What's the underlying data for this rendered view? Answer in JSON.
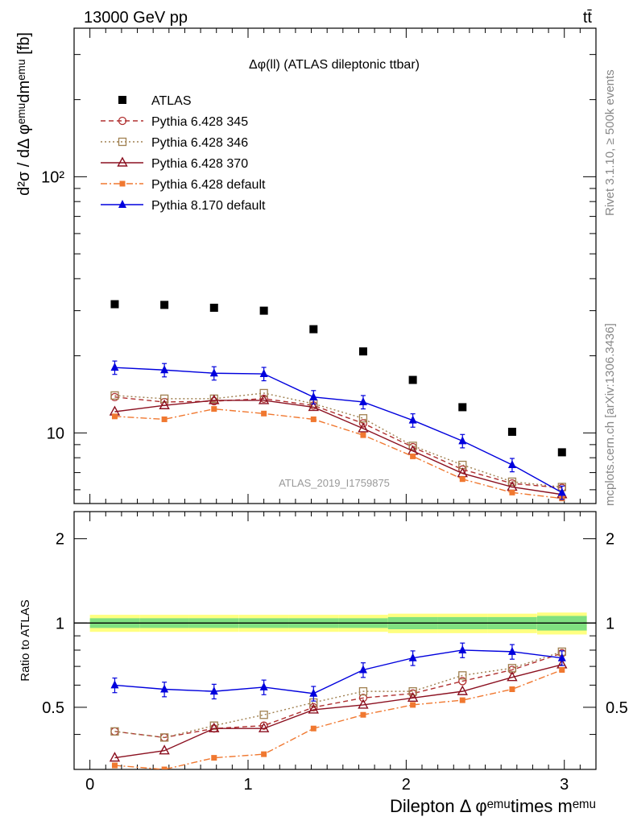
{
  "header": {
    "left": "13000 GeV pp",
    "right": "tt̄"
  },
  "main_title": "Δφ(ll) (ATLAS dileptonic ttbar)",
  "watermark": "ATLAS_2019_I1759875",
  "side_text": {
    "rivet": "Rivet 3.1.10, ≥ 500k events",
    "mcplots": "mcplots.cern.ch [arXiv:1306.3436]"
  },
  "axes": {
    "top_ylabel": "d²σ / dΔ φᵉᵐᵘdmᵉᵐᵘ [fb]",
    "bottom_ylabel": "Ratio to ATLAS",
    "xlabel": "Dilepton Δ φᵉᵐᵘtimes mᵉᵐᵘ",
    "x_ticks": [
      "0",
      "1",
      "2",
      "3"
    ],
    "top_y_ticks": [
      "10",
      "10²"
    ],
    "ratio_y_ticks": [
      "0.5",
      "1",
      "2"
    ]
  },
  "colors": {
    "atlas": "#000000",
    "p345": "#b03030",
    "p346": "#a08050",
    "p370": "#8b1020",
    "p6def": "#f07830",
    "p8def": "#0000dd",
    "band_outer": "#ffff80",
    "band_inner": "#80e080"
  },
  "chart_data": {
    "type": "scatter",
    "x": [
      0.157,
      0.471,
      0.785,
      1.1,
      1.414,
      1.728,
      2.042,
      2.356,
      2.67,
      2.985
    ],
    "xlim": [
      -0.1,
      3.2
    ],
    "ylim": [
      5.3,
      380
    ],
    "yscale": "log",
    "ratio_ylim": [
      0.3,
      2.5
    ],
    "ratio_yscale": "log",
    "legend_position": "top-left",
    "series": [
      {
        "key": "atlas",
        "name": "ATLAS",
        "style": "square-filled",
        "values": [
          31.8,
          31.6,
          30.8,
          30.0,
          25.4,
          20.8,
          16.1,
          12.6,
          10.1,
          8.4
        ]
      },
      {
        "key": "p345",
        "name": "Pythia 6.428 345",
        "style": "circle-open",
        "line": "dashed",
        "values": [
          13.8,
          13.2,
          13.3,
          13.6,
          12.8,
          10.9,
          8.8,
          7.2,
          6.35,
          6.1
        ]
      },
      {
        "key": "p346",
        "name": "Pythia 6.428 346",
        "style": "square-open",
        "line": "dotted",
        "values": [
          14.0,
          13.6,
          13.6,
          14.3,
          13.0,
          11.4,
          8.9,
          7.5,
          6.45,
          6.15
        ]
      },
      {
        "key": "p370",
        "name": "Pythia 6.428 370",
        "style": "triangle-open",
        "line": "solid",
        "values": [
          12.1,
          12.8,
          13.4,
          13.4,
          12.6,
          10.4,
          8.5,
          6.95,
          6.15,
          5.75
        ]
      },
      {
        "key": "p6def",
        "name": "Pythia 6.428 default",
        "style": "square-small-filled",
        "line": "dashdot",
        "values": [
          11.6,
          11.3,
          12.4,
          11.9,
          11.3,
          9.8,
          8.1,
          6.6,
          5.85,
          5.55
        ]
      },
      {
        "key": "p8def",
        "name": "Pythia 8.170 default",
        "style": "triangle-filled",
        "line": "solid",
        "values": [
          18.0,
          17.6,
          17.1,
          17.0,
          13.8,
          13.2,
          11.2,
          9.3,
          7.5,
          5.85
        ]
      }
    ],
    "ratio": {
      "p345": [
        0.41,
        0.39,
        0.42,
        0.43,
        0.5,
        0.54,
        0.56,
        0.62,
        0.68,
        0.78
      ],
      "p346": [
        0.41,
        0.39,
        0.43,
        0.47,
        0.52,
        0.57,
        0.57,
        0.65,
        0.69,
        0.79
      ],
      "p370": [
        0.33,
        0.35,
        0.42,
        0.42,
        0.49,
        0.51,
        0.54,
        0.57,
        0.64,
        0.71
      ],
      "p6def": [
        0.31,
        0.3,
        0.33,
        0.34,
        0.42,
        0.47,
        0.51,
        0.53,
        0.58,
        0.68
      ],
      "p8def": [
        0.6,
        0.58,
        0.57,
        0.59,
        0.56,
        0.68,
        0.75,
        0.8,
        0.79,
        0.75
      ]
    },
    "p8_errors_rel": 0.06,
    "band": {
      "outer_halfwidth": [
        0.07,
        0.07,
        0.07,
        0.07,
        0.07,
        0.07,
        0.08,
        0.08,
        0.08,
        0.09
      ],
      "inner_halfwidth": [
        0.04,
        0.04,
        0.04,
        0.04,
        0.04,
        0.04,
        0.05,
        0.05,
        0.05,
        0.06
      ]
    }
  }
}
